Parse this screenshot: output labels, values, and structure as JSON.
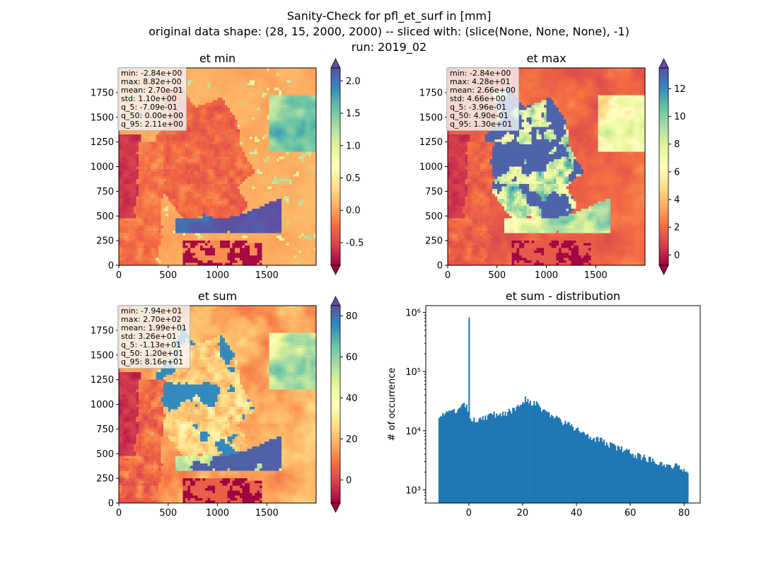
{
  "figure": {
    "title_lines": [
      "Sanity-Check for pfl_et_surf in [mm]",
      "original data shape: (28, 15, 2000, 2000) -- sliced with: (slice(None, None, None), -1)",
      "run: 2019_02"
    ]
  },
  "chart_data": [
    {
      "type": "heatmap",
      "title": "et min",
      "colormap": "Spectral",
      "xlim": [
        0,
        2000
      ],
      "ylim": [
        0,
        2000
      ],
      "xticks": [
        "0",
        "500",
        "1000",
        "1500"
      ],
      "yticks": [
        "0",
        "250",
        "500",
        "750",
        "1000",
        "1250",
        "1500",
        "1750"
      ],
      "colorbar": {
        "range": [
          -0.85,
          2.2
        ],
        "ticks": [
          "-0.5",
          "0.0",
          "0.5",
          "1.0",
          "1.5",
          "2.0"
        ],
        "tick_values": [
          -0.5,
          0.0,
          0.5,
          1.0,
          1.5,
          2.0
        ],
        "extend": "both"
      },
      "stats": [
        "min: -2.84e+00",
        "max: 8.82e+00",
        "mean: 2.70e-01",
        "std: 1.10e+00",
        "q_5: -7.09e-01",
        "q_50: 0.00e+00",
        "q_95: 2.11e+00"
      ]
    },
    {
      "type": "heatmap",
      "title": "et max",
      "colormap": "Spectral",
      "xlim": [
        0,
        2000
      ],
      "ylim": [
        0,
        2000
      ],
      "xticks": [
        "0",
        "500",
        "1000",
        "1500"
      ],
      "yticks": [
        "0",
        "250",
        "500",
        "750",
        "1000",
        "1250",
        "1500",
        "1750"
      ],
      "colorbar": {
        "range": [
          -0.75,
          13.5
        ],
        "ticks": [
          "0",
          "2",
          "4",
          "6",
          "8",
          "10",
          "12"
        ],
        "tick_values": [
          0,
          2,
          4,
          6,
          8,
          10,
          12
        ],
        "extend": "both"
      },
      "stats": [
        "min: -2.84e+00",
        "max: 4.28e+01",
        "mean: 2.66e+00",
        "std: 4.66e+00",
        "q_5: -3.96e-01",
        "q_50: 4.90e-01",
        "q_95: 1.30e+01"
      ]
    },
    {
      "type": "heatmap",
      "title": "et sum",
      "colormap": "Spectral",
      "xlim": [
        0,
        2000
      ],
      "ylim": [
        0,
        2000
      ],
      "xticks": [
        "0",
        "500",
        "1000",
        "1500"
      ],
      "yticks": [
        "0",
        "250",
        "500",
        "750",
        "1000",
        "1250",
        "1500",
        "1750"
      ],
      "colorbar": {
        "range": [
          -11.3,
          85
        ],
        "ticks": [
          "0",
          "20",
          "40",
          "60",
          "80"
        ],
        "tick_values": [
          0,
          20,
          40,
          60,
          80
        ],
        "extend": "both"
      },
      "stats": [
        "min: -7.94e+01",
        "max: 2.70e+02",
        "mean: 1.99e+01",
        "std: 3.26e+01",
        "q_5: -1.13e+01",
        "q_50: 1.20e+01",
        "q_95: 8.16e+01"
      ]
    },
    {
      "type": "bar",
      "title": "et sum - distribution",
      "ylabel": "# of occurrence",
      "yscale": "log",
      "xlim": [
        -16,
        86
      ],
      "ylim": [
        600,
        1300000
      ],
      "xticks": [
        "0",
        "20",
        "40",
        "60",
        "80"
      ],
      "xtick_values": [
        0,
        20,
        40,
        60,
        80
      ],
      "yticks": [
        "10³",
        "10⁴",
        "10⁵",
        "10⁶"
      ],
      "ytick_values": [
        1000,
        10000,
        100000,
        1000000
      ],
      "color": "#1f77b4",
      "bins": {
        "start": -11.3,
        "end": 81.6,
        "count": 200
      },
      "profile": [
        [
          -11.3,
          19000
        ],
        [
          -8,
          19500
        ],
        [
          -4,
          22000
        ],
        [
          -1,
          28000
        ],
        [
          0.5,
          14000
        ],
        [
          4,
          16500
        ],
        [
          10,
          19000
        ],
        [
          16,
          21000
        ],
        [
          21,
          35000
        ],
        [
          25,
          28000
        ],
        [
          30,
          19000
        ],
        [
          35,
          14000
        ],
        [
          40,
          10500
        ],
        [
          50,
          6500
        ],
        [
          60,
          4200
        ],
        [
          70,
          3000
        ],
        [
          81.6,
          2200
        ]
      ],
      "spike": {
        "x": 0,
        "value": 820000
      }
    }
  ]
}
